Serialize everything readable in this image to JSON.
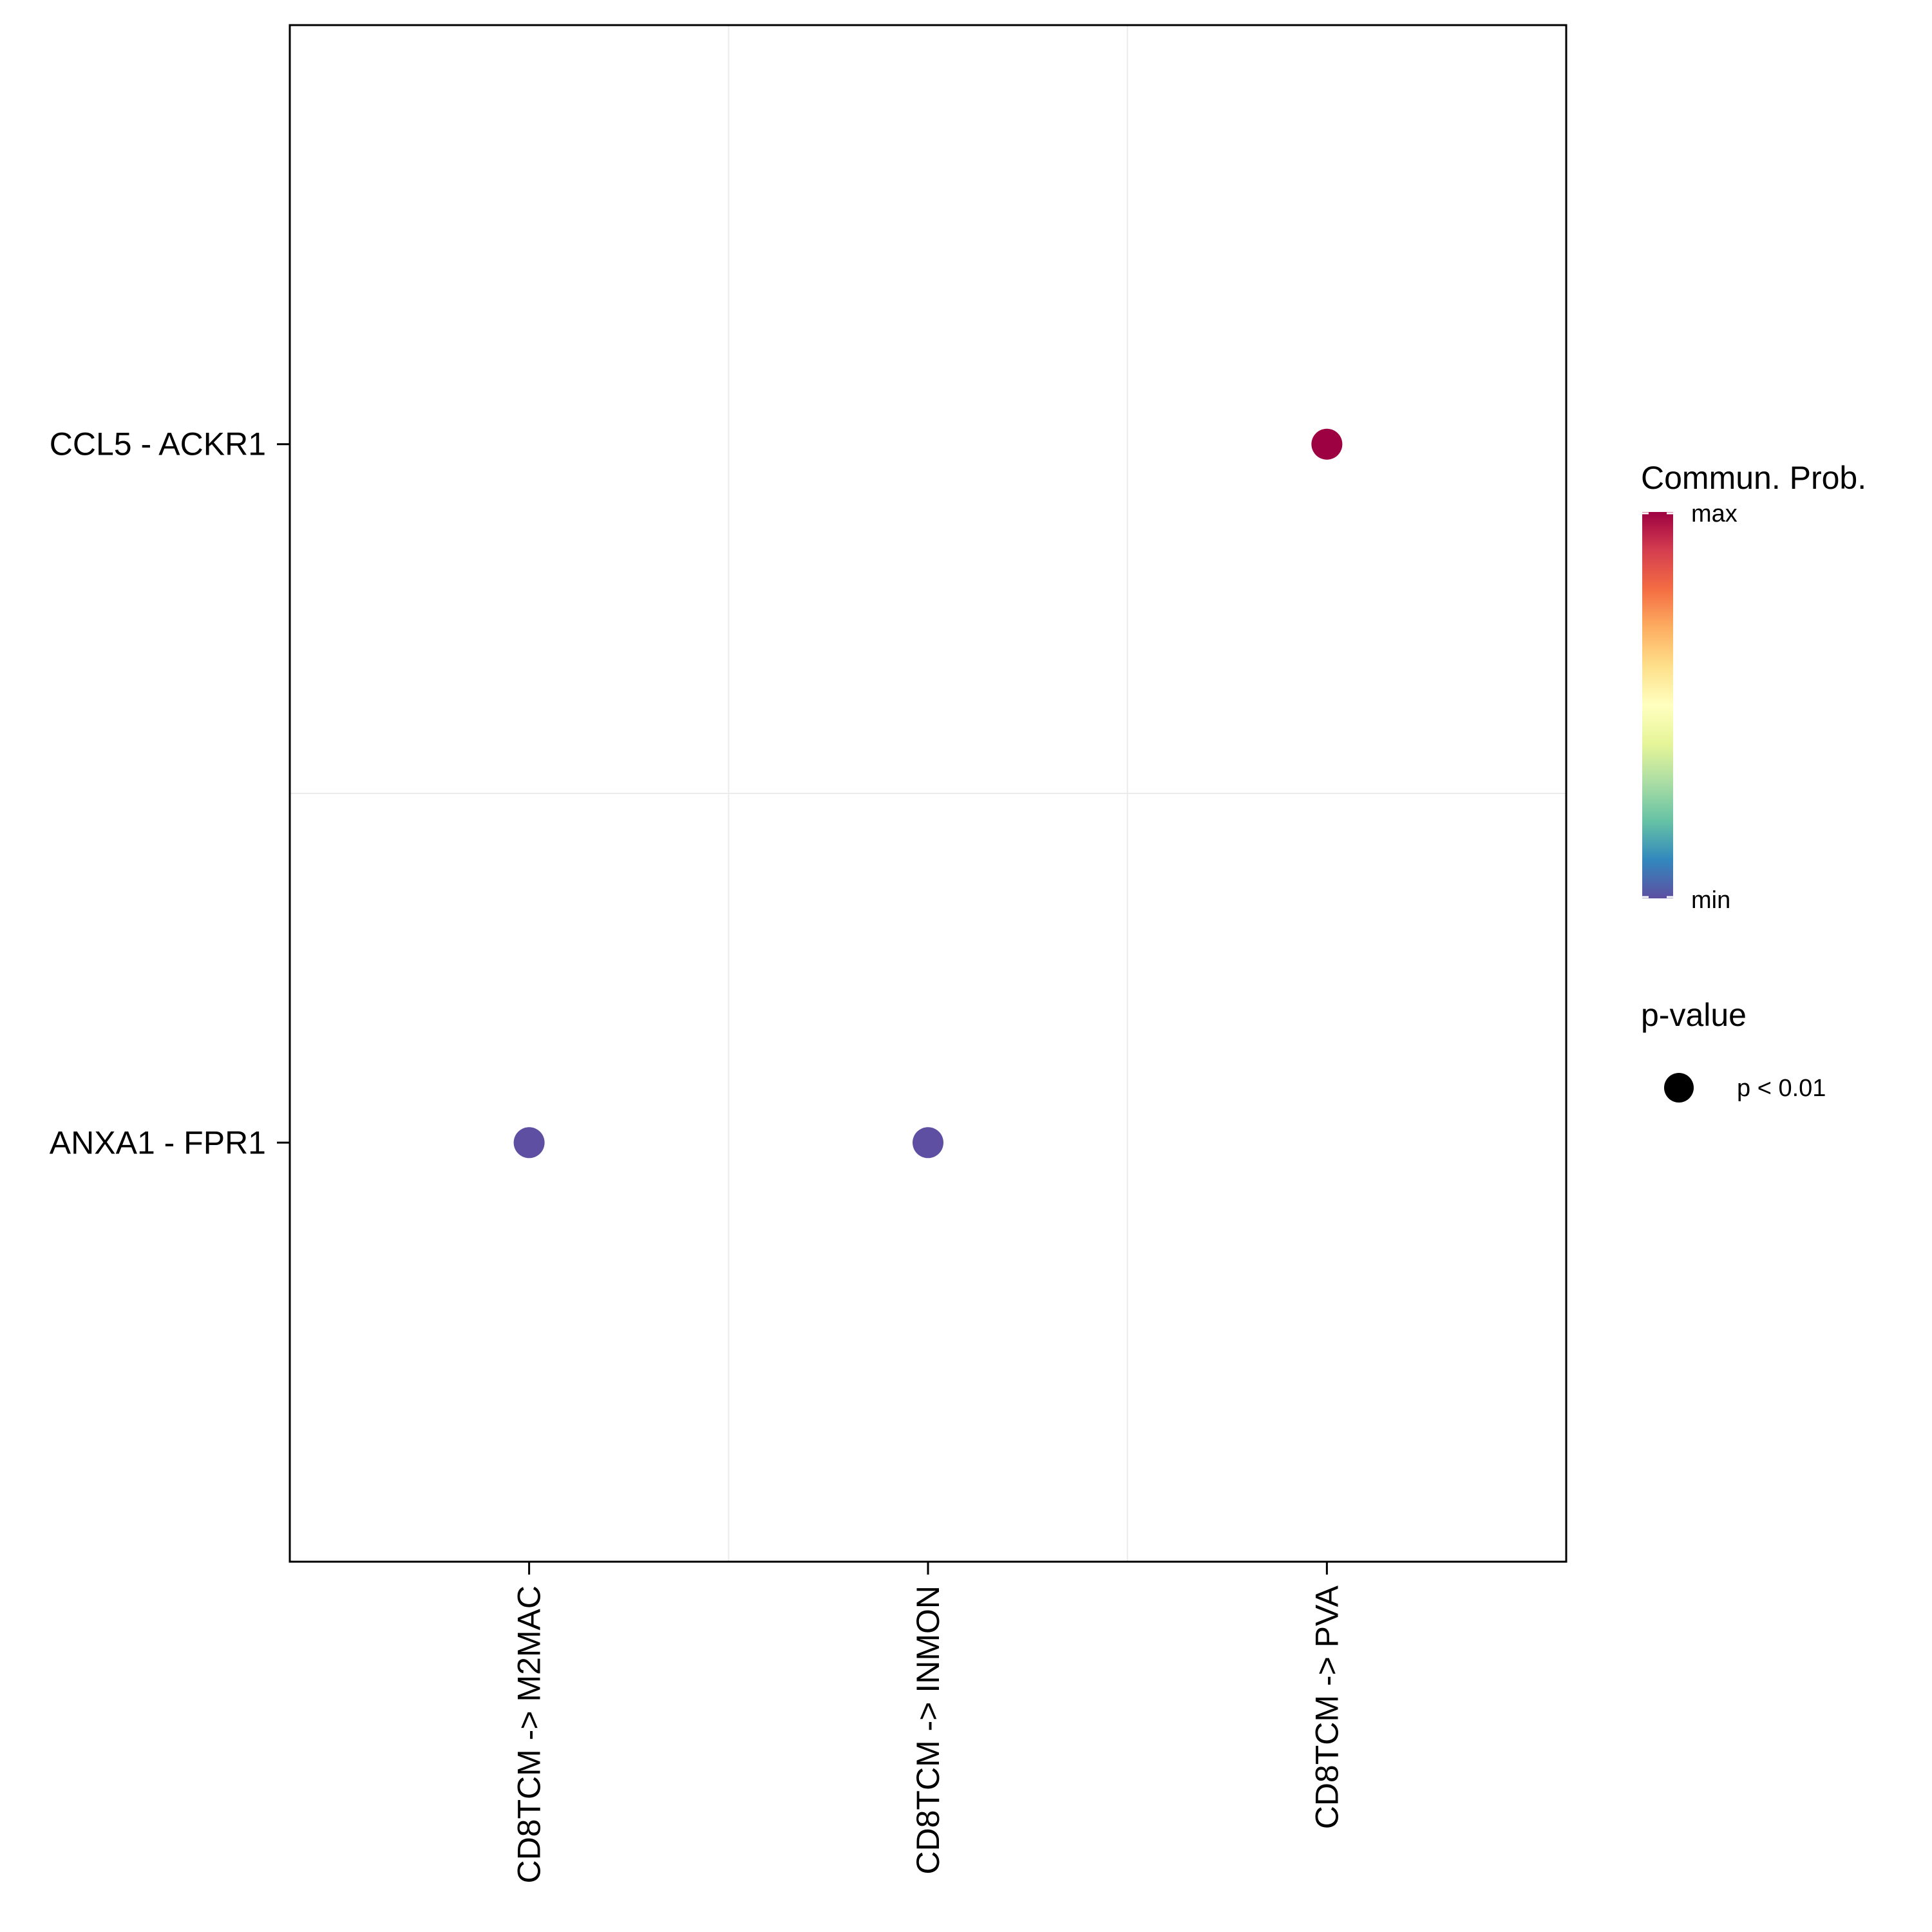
{
  "chart_data": {
    "type": "scatter",
    "title": "",
    "xlabel": "",
    "ylabel": "",
    "categories": [
      "CD8TCM -> M2MAC",
      "CD8TCM -> INMON",
      "CD8TCM -> PVA"
    ],
    "y_categories": [
      "CCL5 - ACKR1",
      "ANXA1 - FPR1"
    ],
    "grid": true,
    "points": [
      {
        "x": "CD8TCM -> M2MAC",
        "y": "ANXA1 - FPR1",
        "prob_level": 0.0,
        "color": "#5E4FA2"
      },
      {
        "x": "CD8TCM -> INMON",
        "y": "ANXA1 - FPR1",
        "prob_level": 0.0,
        "color": "#5E4FA2"
      },
      {
        "x": "CD8TCM -> PVA",
        "y": "CCL5 - ACKR1",
        "prob_level": 1.0,
        "color": "#9E0142"
      }
    ],
    "legend": {
      "position": "right",
      "color_title": "Commun. Prob.",
      "color_max_label": "max",
      "color_min_label": "min",
      "colormap": [
        "#5E4FA2",
        "#3288BD",
        "#66C2A5",
        "#ABDDA4",
        "#E6F598",
        "#FFFFBF",
        "#FEE08B",
        "#FDAE61",
        "#F46D43",
        "#D53E4F",
        "#9E0142"
      ],
      "size_title": "p-value",
      "size_label": "p < 0.01"
    }
  }
}
